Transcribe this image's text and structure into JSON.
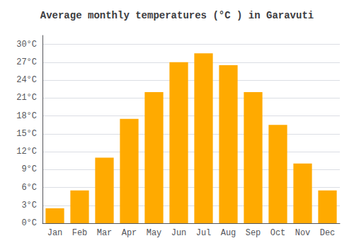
{
  "chart_data": {
    "type": "bar",
    "title": "Average monthly temperatures (°C ) in Garavuti",
    "categories": [
      "Jan",
      "Feb",
      "Mar",
      "Apr",
      "May",
      "Jun",
      "Jul",
      "Aug",
      "Sep",
      "Oct",
      "Nov",
      "Dec"
    ],
    "values": [
      2.5,
      5.5,
      11.0,
      17.5,
      22.0,
      27.0,
      28.5,
      26.5,
      22.0,
      16.5,
      10.0,
      5.5
    ],
    "color": "#FFAA00",
    "ylim": [
      0,
      31.5
    ],
    "yticks": [
      {
        "value": 0,
        "label": "0°C"
      },
      {
        "value": 3,
        "label": "3°C"
      },
      {
        "value": 6,
        "label": "6°C"
      },
      {
        "value": 9,
        "label": "9°C"
      },
      {
        "value": 12,
        "label": "12°C"
      },
      {
        "value": 15,
        "label": "15°C"
      },
      {
        "value": 18,
        "label": "18°C"
      },
      {
        "value": 21,
        "label": "21°C"
      },
      {
        "value": 24,
        "label": "24°C"
      },
      {
        "value": 27,
        "label": "27°C"
      },
      {
        "value": 30,
        "label": "30°C"
      }
    ],
    "grid": true
  }
}
